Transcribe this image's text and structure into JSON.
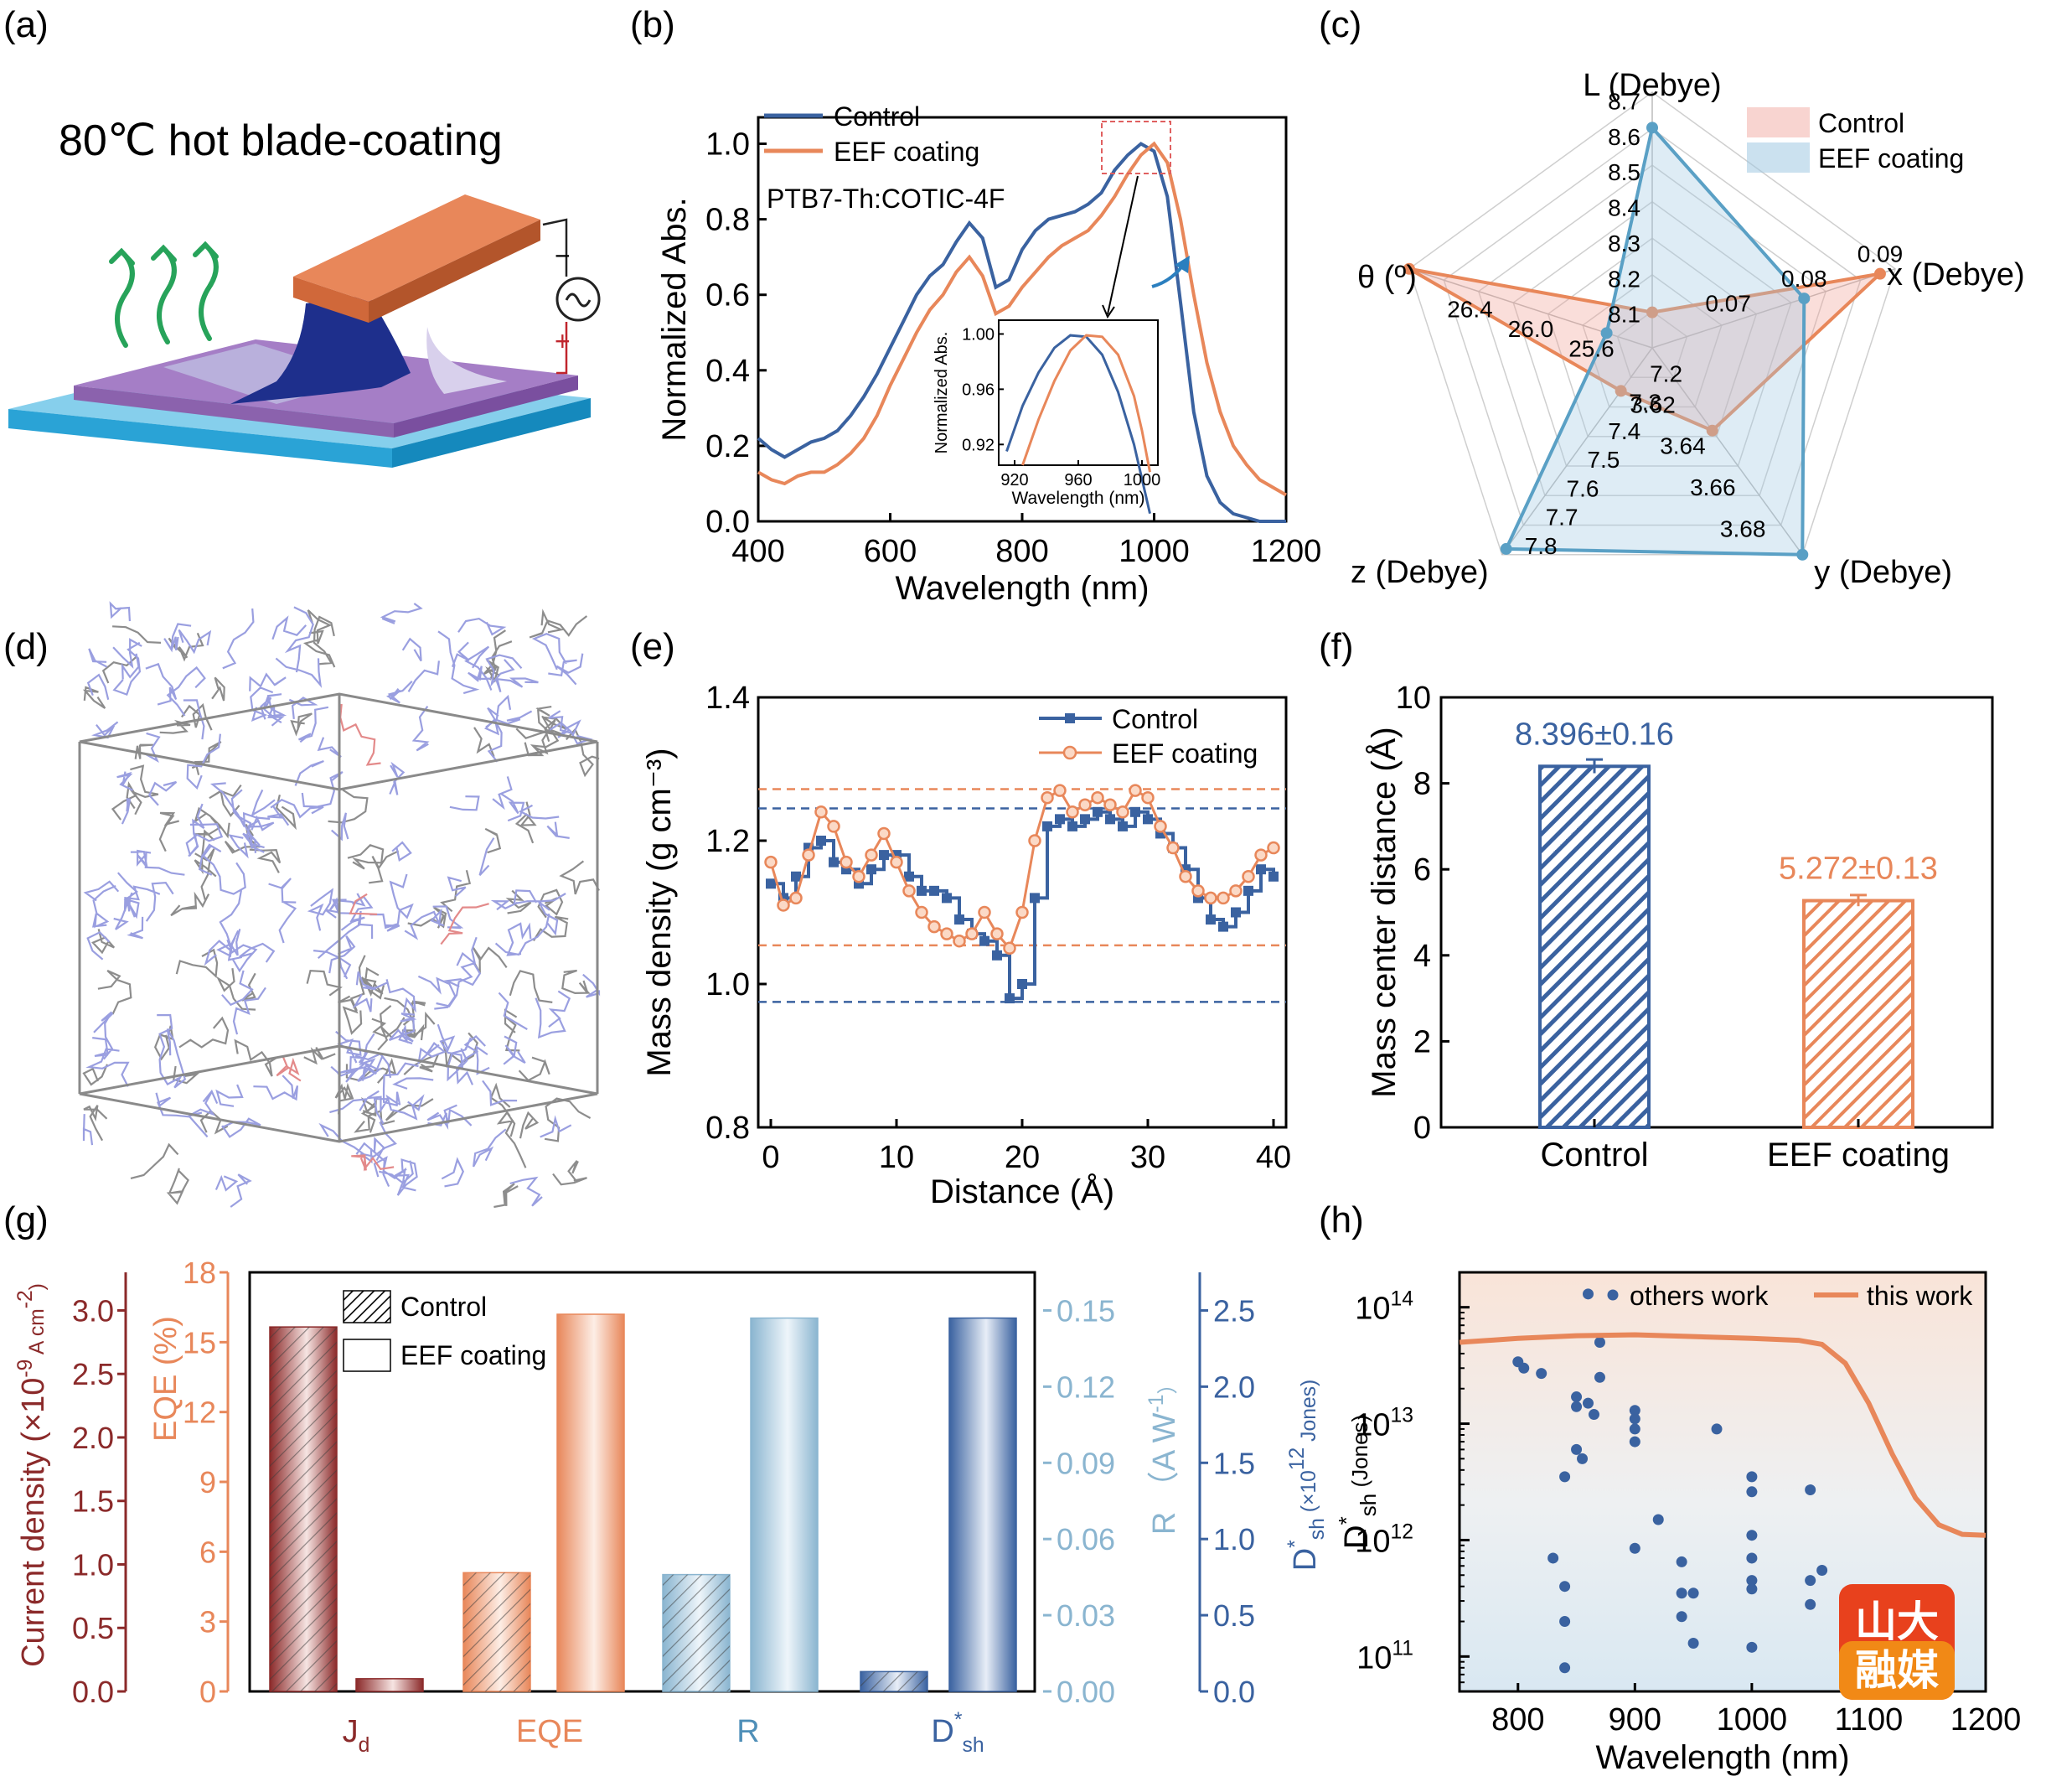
{
  "panel_labels": [
    "(a)",
    "(b)",
    "(c)",
    "(d)",
    "(e)",
    "(f)",
    "(g)",
    "(h)"
  ],
  "panel_a": {
    "title": "80℃ hot blade-coating",
    "minus": "−",
    "plus": "+"
  },
  "colors": {
    "control": "#3a62a0",
    "eef": "#e8875a",
    "jd": "#8b2a2a",
    "eqe": "#e8875a",
    "r": "#8ab5d0",
    "dsh": "#3a62a0"
  },
  "chart_data": [
    {
      "id": "b",
      "type": "line",
      "xlabel": "Wavelength (nm)",
      "ylabel": "Normalized Abs.",
      "xlim": [
        400,
        1200
      ],
      "ylim": [
        0,
        1.07
      ],
      "xticks": [
        "400",
        "600",
        "800",
        "1000",
        "1200"
      ],
      "yticks": [
        "0.0",
        "0.2",
        "0.4",
        "0.6",
        "0.8",
        "1.0"
      ],
      "annotation": "PTB7-Th:COTIC-4F",
      "legend": [
        "Control",
        "EEF coating"
      ],
      "series": [
        {
          "name": "Control",
          "x": [
            400,
            420,
            440,
            460,
            480,
            500,
            520,
            540,
            560,
            580,
            600,
            620,
            640,
            660,
            680,
            700,
            720,
            740,
            760,
            780,
            800,
            820,
            840,
            860,
            880,
            900,
            920,
            940,
            960,
            980,
            1000,
            1020,
            1040,
            1060,
            1080,
            1100,
            1120,
            1140,
            1160,
            1180,
            1200
          ],
          "y": [
            0.22,
            0.19,
            0.17,
            0.19,
            0.21,
            0.22,
            0.24,
            0.28,
            0.33,
            0.39,
            0.46,
            0.53,
            0.6,
            0.65,
            0.68,
            0.74,
            0.79,
            0.75,
            0.62,
            0.64,
            0.72,
            0.77,
            0.8,
            0.81,
            0.82,
            0.84,
            0.87,
            0.93,
            0.97,
            1.0,
            0.98,
            0.86,
            0.58,
            0.29,
            0.12,
            0.05,
            0.02,
            0.01,
            0.0,
            0.0,
            0.0
          ]
        },
        {
          "name": "EEF coating",
          "x": [
            400,
            420,
            440,
            460,
            480,
            500,
            520,
            540,
            560,
            580,
            600,
            620,
            640,
            660,
            680,
            700,
            720,
            740,
            760,
            780,
            800,
            820,
            840,
            860,
            880,
            900,
            920,
            940,
            960,
            980,
            1000,
            1020,
            1040,
            1060,
            1080,
            1100,
            1120,
            1140,
            1160,
            1180,
            1200
          ],
          "y": [
            0.13,
            0.11,
            0.1,
            0.12,
            0.13,
            0.13,
            0.15,
            0.18,
            0.22,
            0.28,
            0.36,
            0.43,
            0.5,
            0.56,
            0.6,
            0.66,
            0.7,
            0.65,
            0.55,
            0.57,
            0.62,
            0.66,
            0.7,
            0.73,
            0.75,
            0.77,
            0.81,
            0.86,
            0.92,
            0.97,
            1.0,
            0.95,
            0.8,
            0.6,
            0.42,
            0.29,
            0.2,
            0.15,
            0.11,
            0.09,
            0.07
          ]
        }
      ],
      "inset": {
        "xlabel": "Wavelength (nm)",
        "ylabel": "Normalized Abs.",
        "xlim": [
          910,
          1010
        ],
        "ylim": [
          0.905,
          1.01
        ],
        "xticks": [
          "920",
          "960",
          "1000"
        ],
        "yticks": [
          "0.92",
          "0.96",
          "1.00"
        ],
        "series": [
          {
            "name": "Control",
            "x": [
              915,
              925,
              935,
              945,
              955,
              965,
              975,
              985,
              995,
              1005
            ],
            "y": [
              0.915,
              0.948,
              0.972,
              0.99,
              0.999,
              0.998,
              0.985,
              0.958,
              0.92,
              0.87
            ]
          },
          {
            "name": "EEF coating",
            "x": [
              925,
              935,
              945,
              955,
              965,
              975,
              985,
              995,
              1000,
              1005
            ],
            "y": [
              0.905,
              0.938,
              0.966,
              0.988,
              0.999,
              0.998,
              0.985,
              0.955,
              0.93,
              0.9
            ]
          }
        ]
      }
    },
    {
      "id": "c",
      "type": "radar",
      "axes": [
        "L (Debye)",
        "x (Debye)",
        "y (Debye)",
        "z (Debye)",
        "θ (º)"
      ],
      "axis_ticks": [
        [
          "8.1",
          "8.2",
          "8.3",
          "8.4",
          "8.5",
          "8.6",
          "8.7"
        ],
        [
          "0.07",
          "0.08",
          "0.09"
        ],
        [
          "3.62",
          "3.64",
          "3.66",
          "3.68"
        ],
        [
          "7.2",
          "7.3",
          "7.4",
          "7.5",
          "7.6",
          "7.7",
          "7.8"
        ],
        [
          "25.6",
          "26.0",
          "26.4"
        ]
      ],
      "axis_ranges": [
        [
          8.0,
          8.72
        ],
        [
          0.06,
          0.092
        ],
        [
          3.6,
          3.7
        ],
        [
          7.1,
          7.82
        ],
        [
          25.2,
          26.8
        ]
      ],
      "legend": [
        "Control",
        "EEF coating"
      ],
      "series": [
        {
          "name": "Control",
          "values": [
            8.1,
            0.09,
            3.64,
            7.25,
            26.8
          ]
        },
        {
          "name": "EEF coating",
          "values": [
            8.62,
            0.08,
            3.7,
            7.8,
            25.5
          ]
        }
      ]
    },
    {
      "id": "e",
      "type": "line",
      "xlabel": "Distance (Å)",
      "ylabel": "Mass density (g cm⁻³)",
      "xlim": [
        -1,
        41
      ],
      "ylim": [
        0.8,
        1.4
      ],
      "xticks": [
        "0",
        "10",
        "20",
        "30",
        "40"
      ],
      "yticks": [
        "0.8",
        "1.0",
        "1.2",
        "1.4"
      ],
      "legend": [
        "Control",
        "EEF coating"
      ],
      "reference_lines": {
        "Control": [
          1.245,
          0.975
        ],
        "EEF coating": [
          1.272,
          1.054
        ]
      },
      "series": [
        {
          "name": "Control",
          "x": [
            0,
            1,
            2,
            3,
            4,
            5,
            6,
            7,
            8,
            9,
            10,
            11,
            12,
            13,
            14,
            15,
            16,
            17,
            18,
            19,
            20,
            21,
            22,
            23,
            24,
            25,
            26,
            27,
            28,
            29,
            30,
            31,
            32,
            33,
            34,
            35,
            36,
            37,
            38,
            39,
            40
          ],
          "y": [
            1.14,
            1.12,
            1.15,
            1.19,
            1.2,
            1.17,
            1.16,
            1.14,
            1.16,
            1.18,
            1.18,
            1.15,
            1.13,
            1.13,
            1.12,
            1.09,
            1.07,
            1.06,
            1.04,
            0.98,
            1.0,
            1.12,
            1.22,
            1.23,
            1.22,
            1.23,
            1.24,
            1.23,
            1.22,
            1.24,
            1.23,
            1.21,
            1.19,
            1.16,
            1.12,
            1.09,
            1.08,
            1.1,
            1.13,
            1.16,
            1.15
          ]
        },
        {
          "name": "EEF coating",
          "x": [
            0,
            1,
            2,
            3,
            4,
            5,
            6,
            7,
            8,
            9,
            10,
            11,
            12,
            13,
            14,
            15,
            16,
            17,
            18,
            19,
            20,
            21,
            22,
            23,
            24,
            25,
            26,
            27,
            28,
            29,
            30,
            31,
            32,
            33,
            34,
            35,
            36,
            37,
            38,
            39,
            40
          ],
          "y": [
            1.17,
            1.11,
            1.12,
            1.18,
            1.24,
            1.22,
            1.17,
            1.15,
            1.18,
            1.21,
            1.17,
            1.13,
            1.1,
            1.08,
            1.07,
            1.06,
            1.07,
            1.1,
            1.07,
            1.05,
            1.1,
            1.2,
            1.26,
            1.27,
            1.24,
            1.25,
            1.26,
            1.25,
            1.24,
            1.27,
            1.26,
            1.22,
            1.19,
            1.15,
            1.13,
            1.12,
            1.12,
            1.13,
            1.15,
            1.18,
            1.19
          ]
        }
      ]
    },
    {
      "id": "f",
      "type": "bar",
      "categories": [
        "Control",
        "EEF coating"
      ],
      "values": [
        8.396,
        5.272
      ],
      "errors": [
        0.16,
        0.13
      ],
      "data_labels": [
        "8.396±0.16",
        "5.272±0.13"
      ],
      "ylabel": "Mass center  distance (Å)",
      "ylim": [
        0,
        10
      ],
      "yticks": [
        "0",
        "2",
        "4",
        "6",
        "8",
        "10"
      ]
    },
    {
      "id": "g",
      "type": "bar",
      "categories": [
        "J_d",
        "EQE",
        "R",
        "D*_sh"
      ],
      "legend": [
        "Control",
        "EEF coating"
      ],
      "axes": [
        {
          "label": "Current density (×10⁻⁹ A cm⁻²)",
          "ylim": [
            0,
            3.3
          ],
          "ticks": [
            "0.0",
            "0.5",
            "1.0",
            "1.5",
            "2.0",
            "2.5",
            "3.0"
          ]
        },
        {
          "label": "EQE (%)",
          "ylim": [
            0,
            18
          ],
          "ticks": [
            "0",
            "3",
            "6",
            "9",
            "12",
            "15",
            "18"
          ]
        },
        {
          "label": "R （A W⁻¹）",
          "ylim": [
            0,
            0.165
          ],
          "ticks": [
            "0.00",
            "0.03",
            "0.06",
            "0.09",
            "0.12",
            "0.15"
          ]
        },
        {
          "label": "D*sh (×10¹² Jones)",
          "ylim": [
            0,
            2.75
          ],
          "ticks": [
            "0.0",
            "0.5",
            "1.0",
            "1.5",
            "2.0",
            "2.5"
          ]
        }
      ],
      "series": [
        {
          "name": "Control",
          "values": [
            2.87,
            5.1,
            0.046,
            0.13
          ]
        },
        {
          "name": "EEF coating",
          "values": [
            0.1,
            16.2,
            0.147,
            2.45
          ]
        }
      ]
    },
    {
      "id": "h",
      "type": "scatter",
      "xlabel": "Wavelength (nm)",
      "ylabel": "D*sh (Jones)",
      "xlim": [
        750,
        1200
      ],
      "ylim_log10": [
        10.7,
        14.3
      ],
      "log_y": true,
      "xticks": [
        "800",
        "900",
        "1000",
        "1100",
        "1200"
      ],
      "legend": [
        "others work",
        "this work"
      ],
      "series": [
        {
          "name": "others work",
          "x": [
            800,
            805,
            820,
            830,
            840,
            840,
            840,
            840,
            850,
            850,
            850,
            855,
            860,
            860,
            865,
            870,
            870,
            900,
            900,
            900,
            900,
            900,
            920,
            940,
            940,
            940,
            950,
            950,
            970,
            1000,
            1000,
            1000,
            1000,
            1000,
            1000,
            1000,
            1050,
            1050,
            1050,
            1060
          ],
          "y": [
            34000000000000.0,
            30000000000000.0,
            27000000000000.0,
            700000000000.0,
            3500000000000.0,
            400000000000.0,
            200000000000.0,
            80000000000.0,
            17000000000000.0,
            14000000000000.0,
            6000000000000.0,
            5000000000000.0,
            15000000000000.0,
            130000000000000.0,
            12000000000000.0,
            50000000000000.0,
            25000000000000.0,
            13000000000000.0,
            11000000000000.0,
            9000000000000.0,
            7000000000000.0,
            850000000000.0,
            1500000000000.0,
            650000000000.0,
            350000000000.0,
            220000000000.0,
            350000000000.0,
            130000000000.0,
            9000000000000.0,
            3500000000000.0,
            2600000000000.0,
            1100000000000.0,
            700000000000.0,
            450000000000.0,
            380000000000.0,
            120000000000.0,
            2700000000000.0,
            450000000000.0,
            280000000000.0,
            550000000000.0
          ]
        },
        {
          "name": "this work",
          "x": [
            750,
            800,
            850,
            900,
            950,
            1000,
            1040,
            1060,
            1080,
            1100,
            1120,
            1140,
            1160,
            1180,
            1200
          ],
          "y": [
            50000000000000.0,
            54000000000000.0,
            57000000000000.0,
            58000000000000.0,
            56000000000000.0,
            54000000000000.0,
            52000000000000.0,
            48000000000000.0,
            33000000000000.0,
            15000000000000.0,
            5500000000000.0,
            2300000000000.0,
            1350000000000.0,
            1120000000000.0,
            1100000000000.0
          ]
        }
      ]
    }
  ],
  "watermark": {
    "line1": "山大",
    "line2": "融媒"
  }
}
